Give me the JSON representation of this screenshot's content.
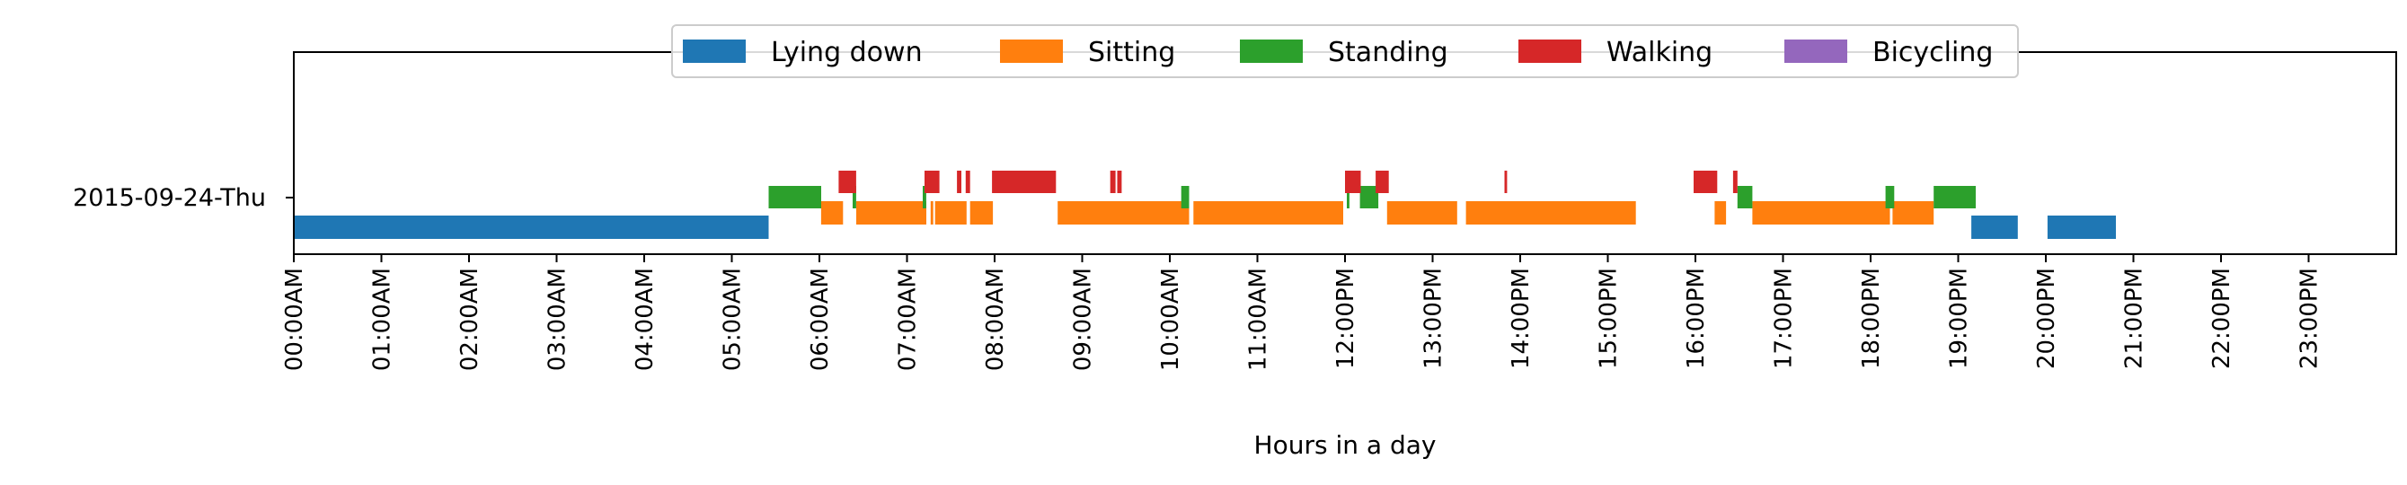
{
  "chart_data": {
    "type": "timeline",
    "title": "",
    "xlabel": "Hours in a day",
    "ylabel": "",
    "xlim": [
      0,
      24
    ],
    "grid": false,
    "legend_placement": "top-center",
    "category": "2015-09-24-Thu",
    "x_tick_labels": [
      "00:00AM",
      "01:00AM",
      "02:00AM",
      "03:00AM",
      "04:00AM",
      "05:00AM",
      "06:00AM",
      "07:00AM",
      "08:00AM",
      "09:00AM",
      "10:00AM",
      "11:00AM",
      "12:00PM",
      "13:00PM",
      "14:00PM",
      "15:00PM",
      "16:00PM",
      "17:00PM",
      "18:00PM",
      "19:00PM",
      "20:00PM",
      "21:00PM",
      "22:00PM",
      "23:00PM"
    ],
    "series": [
      {
        "name": "Lying down",
        "color": "#1f77b4",
        "intervals": [
          [
            0.0,
            5.42
          ],
          [
            19.15,
            19.68
          ],
          [
            20.02,
            20.8
          ]
        ]
      },
      {
        "name": "Sitting",
        "color": "#ff7f0e",
        "intervals": [
          [
            6.02,
            6.27
          ],
          [
            6.42,
            7.22
          ],
          [
            7.27,
            7.3
          ],
          [
            7.32,
            7.68
          ],
          [
            7.72,
            7.98
          ],
          [
            8.72,
            10.22
          ],
          [
            10.27,
            11.98
          ],
          [
            12.48,
            13.28
          ],
          [
            13.38,
            15.32
          ],
          [
            16.22,
            16.35
          ],
          [
            16.65,
            18.22
          ],
          [
            18.25,
            18.72
          ]
        ]
      },
      {
        "name": "Standing",
        "color": "#2ca02c",
        "intervals": [
          [
            5.42,
            6.02
          ],
          [
            6.38,
            6.42
          ],
          [
            7.18,
            7.22
          ],
          [
            10.13,
            10.22
          ],
          [
            12.02,
            12.05
          ],
          [
            12.17,
            12.38
          ],
          [
            16.48,
            16.65
          ],
          [
            18.17,
            18.27
          ],
          [
            18.72,
            19.2
          ]
        ]
      },
      {
        "name": "Walking",
        "color": "#d62728",
        "intervals": [
          [
            6.22,
            6.42
          ],
          [
            7.2,
            7.37
          ],
          [
            7.57,
            7.62
          ],
          [
            7.67,
            7.72
          ],
          [
            7.97,
            8.7
          ],
          [
            9.32,
            9.38
          ],
          [
            9.4,
            9.45
          ],
          [
            12.0,
            12.18
          ],
          [
            12.35,
            12.5
          ],
          [
            13.82,
            13.85
          ],
          [
            15.98,
            16.25
          ],
          [
            16.43,
            16.48
          ]
        ]
      },
      {
        "name": "Bicycling",
        "color": "#9467bd",
        "intervals": []
      }
    ]
  }
}
